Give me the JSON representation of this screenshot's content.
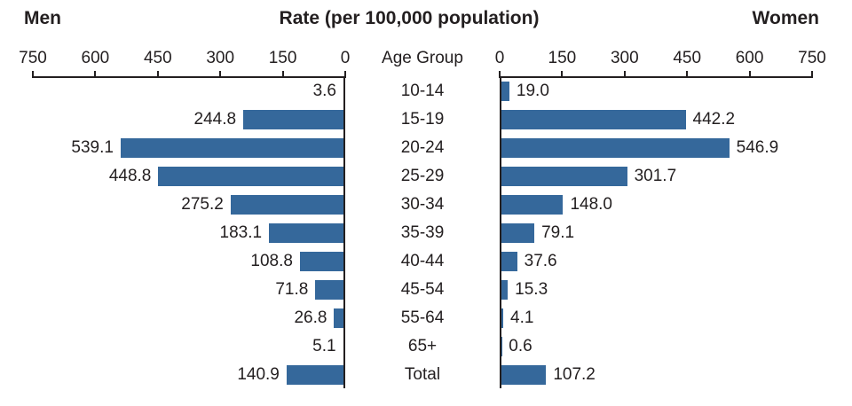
{
  "header": {
    "men_label": "Men",
    "title": "Rate (per 100,000 population)",
    "women_label": "Women",
    "age_group_header": "Age Group"
  },
  "chart_data": {
    "type": "bar",
    "subtype": "population-pyramid",
    "title": "Rate (per 100,000 population)",
    "categories": [
      "10-14",
      "15-19",
      "20-24",
      "25-29",
      "30-34",
      "35-39",
      "40-44",
      "45-54",
      "55-64",
      "65+",
      "Total"
    ],
    "series": [
      {
        "name": "Men",
        "side": "left",
        "values": [
          3.6,
          244.8,
          539.1,
          448.8,
          275.2,
          183.1,
          108.8,
          71.8,
          26.8,
          5.1,
          140.9
        ]
      },
      {
        "name": "Women",
        "side": "right",
        "values": [
          19.0,
          442.2,
          546.9,
          301.7,
          148.0,
          79.1,
          37.6,
          15.3,
          4.1,
          0.6,
          107.2
        ]
      }
    ],
    "axis": {
      "min": 0,
      "max": 750,
      "ticks_left": [
        750,
        600,
        450,
        300,
        150,
        0
      ],
      "ticks_right": [
        0,
        150,
        300,
        450,
        600,
        750
      ]
    },
    "value_label_decimals": 1,
    "grid": false,
    "legend": "none",
    "bar_color": "#35689B",
    "axis_color": "#231F20",
    "text_color": "#231F20"
  }
}
